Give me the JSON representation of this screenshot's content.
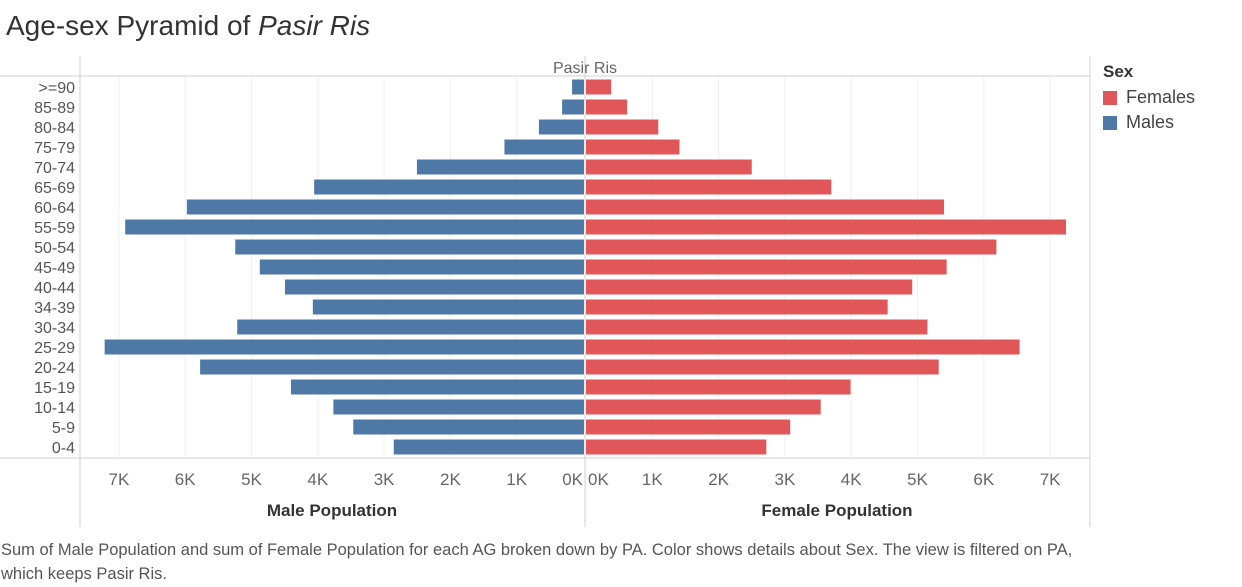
{
  "title": {
    "prefix": "Age-sex Pyramid of ",
    "place": "Pasir Ris"
  },
  "legend": {
    "title": "Sex",
    "items": [
      {
        "label": "Females",
        "color": "#e15759"
      },
      {
        "label": "Males",
        "color": "#4e79a7"
      }
    ]
  },
  "caption": "Sum of Male Population and sum of Female Population for each AG broken down by PA.  Color shows details about Sex. The view is filtered on PA, which keeps Pasir Ris.",
  "chart_data": {
    "type": "bar",
    "orientation": "horizontal",
    "header": "Pasir Ris",
    "categories": [
      ">=90",
      "85-89",
      "80-84",
      "75-79",
      "70-74",
      "65-69",
      "60-64",
      "55-59",
      "50-54",
      "45-49",
      "40-44",
      "34-39",
      "30-34",
      "25-29",
      "20-24",
      "15-19",
      "10-14",
      "5-9",
      "0-4"
    ],
    "series": [
      {
        "name": "Males",
        "color": "#4e79a7",
        "values": [
          180,
          330,
          680,
          1200,
          2520,
          4070,
          5990,
          6920,
          5260,
          4890,
          4510,
          4090,
          5230,
          7230,
          5790,
          4420,
          3780,
          3480,
          2870
        ]
      },
      {
        "name": "Females",
        "color": "#e15759",
        "values": [
          380,
          620,
          1090,
          1410,
          2500,
          3700,
          5400,
          7240,
          6190,
          5440,
          4920,
          4550,
          5150,
          6540,
          5320,
          3990,
          3540,
          3080,
          2720
        ]
      }
    ],
    "left_axis": {
      "label": "Male Population",
      "range": [
        0,
        7600
      ],
      "ticks": [
        7000,
        6000,
        5000,
        4000,
        3000,
        2000,
        1000,
        0
      ],
      "tick_labels": [
        "7K",
        "6K",
        "5K",
        "4K",
        "3K",
        "2K",
        "1K",
        "0K"
      ]
    },
    "right_axis": {
      "label": "Female Population",
      "range": [
        0,
        7600
      ],
      "ticks": [
        0,
        1000,
        2000,
        3000,
        4000,
        5000,
        6000,
        7000
      ],
      "tick_labels": [
        "0K",
        "1K",
        "2K",
        "3K",
        "4K",
        "5K",
        "6K",
        "7K"
      ]
    },
    "grid": true
  }
}
